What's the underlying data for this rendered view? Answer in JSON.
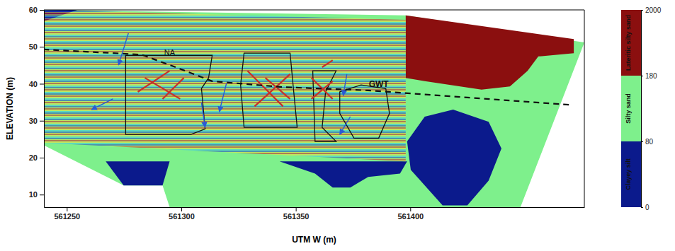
{
  "chart_data": {
    "type": "section",
    "x_label": "UTM W (m)",
    "y_label": "ELEVATION (m)",
    "xlim": [
      561240,
      561476
    ],
    "ylim": [
      6.6,
      60
    ],
    "xticks": [
      561250,
      561300,
      561350,
      561400
    ],
    "yticks": [
      10,
      20,
      30,
      40,
      50,
      60
    ],
    "colorbar": {
      "ticks": [
        0,
        80,
        180,
        2000
      ],
      "classes": [
        "Clayey silt",
        "Silty sand",
        "Lateritic silty sand"
      ],
      "colors": [
        "#0b1a8c",
        "#7ef08c",
        "#8b0f0f"
      ]
    },
    "regions": [
      {
        "class": 1,
        "x": [
          561239.8,
          561398.0,
          561476.0,
          561448.1,
          561294.9,
          561291.8,
          561274.8,
          561239.8
        ],
        "y": [
          60,
          58.5,
          51.2,
          6.6,
          6.6,
          12.5,
          12.5,
          23.4
        ]
      },
      {
        "class": 0,
        "x": [
          561239.8,
          561254.6,
          561239.8
        ],
        "y": [
          60,
          60,
          56.9
        ]
      },
      {
        "class": 0,
        "x": [
          561267.0,
          561294.9,
          561291.8,
          561274.8
        ],
        "y": [
          19.0,
          19.0,
          12.5,
          12.5
        ]
      },
      {
        "class": 0,
        "x": [
          561342.9,
          561398.6,
          561395.5,
          561381.6,
          561373.8,
          561366.1,
          561358.4
        ],
        "y": [
          19.0,
          19.0,
          15.7,
          14.8,
          11.9,
          11.9,
          15.7
        ]
      },
      {
        "class": 0,
        "x": [
          561398.6,
          561406.3,
          561418.7,
          561434.2,
          561439.8,
          561434.2,
          561424.9,
          561414.1,
          561406.3,
          561400.2
        ],
        "y": [
          24.4,
          31.1,
          33.0,
          29.7,
          22.5,
          13.8,
          7.1,
          7.1,
          12.5,
          16.7
        ]
      },
      {
        "class": 2,
        "x": [
          561398.0,
          561471.4,
          561471.4,
          561455.9,
          561451.2,
          561443.5,
          561431.1,
          561406.3,
          561398.0
        ],
        "y": [
          58.5,
          52.1,
          48.3,
          47.4,
          43.5,
          39.3,
          38.4,
          40.7,
          41.6
        ]
      }
    ],
    "radargram": {
      "x": [
        561239.8,
        561398.0,
        561398.0,
        561239.8
      ],
      "y": [
        60,
        57.3,
        19.0,
        24.0
      ]
    },
    "water_table": {
      "x": [
        561239.8,
        561282.5,
        561294.9,
        561313.5,
        561344.4,
        561381.6,
        561469.8
      ],
      "y": [
        49.3,
        47.9,
        45.1,
        40.7,
        39.1,
        38.2,
        34.3
      ],
      "line_style": "dashed"
    },
    "anomalies": [
      {
        "x": [
          561275.7,
          561313.5,
          561311.9,
          561308.8,
          561310.4,
          561304.2,
          561275.7
        ],
        "y": [
          47.7,
          47.7,
          41.6,
          38.7,
          27.8,
          26.3,
          26.3
        ]
      },
      {
        "x": [
          561327.4,
          561347.5,
          561349.1,
          561350.6,
          561327.4,
          561325.9
        ],
        "y": [
          48.3,
          48.3,
          37.8,
          28.2,
          28.2,
          39.7
        ]
      },
      {
        "x": [
          561357.4,
          561367.6,
          561363.0,
          561361.5,
          561367.6,
          561358.4
        ],
        "y": [
          43.5,
          43.5,
          37.8,
          28.2,
          24.4,
          24.4
        ]
      },
      {
        "x": [
          561369.2,
          561378.5,
          561389.3,
          561390.9,
          561386.2,
          561375.4,
          561369.2
        ],
        "y": [
          37.8,
          39.7,
          38.7,
          32.0,
          25.3,
          25.3,
          32.0
        ]
      }
    ],
    "reflectors": [
      {
        "x": [
          561281.0,
          561294.9
        ],
        "y": [
          37.8,
          43.5
        ]
      },
      {
        "x": [
          561284.1,
          561299.5
        ],
        "y": [
          41.6,
          35.9
        ]
      },
      {
        "x": [
          561291.8,
          561301.1
        ],
        "y": [
          35.9,
          41.6
        ]
      },
      {
        "x": [
          561328.9,
          561344.4
        ],
        "y": [
          43.5,
          33.9
        ]
      },
      {
        "x": [
          561332.0,
          561347.5
        ],
        "y": [
          33.9,
          42.6
        ]
      },
      {
        "x": [
          561336.7,
          561347.5
        ],
        "y": [
          41.6,
          35.9
        ]
      },
      {
        "x": [
          561356.8,
          561366.1
        ],
        "y": [
          41.6,
          35.9
        ]
      },
      {
        "x": [
          561356.8,
          561366.1
        ],
        "y": [
          35.9,
          40.7
        ]
      },
      {
        "x": [
          561361.5,
          561366.1
        ],
        "y": [
          44.5,
          46.4
        ]
      }
    ],
    "arrows": [
      {
        "x": [
          561276.9,
          561272.6
        ],
        "y": [
          53.7,
          45.1
        ]
      },
      {
        "x": [
          561270.1,
          561260.8
        ],
        "y": [
          35.9,
          33.0
        ]
      },
      {
        "x": [
          561319.7,
          561316.6
        ],
        "y": [
          40.1,
          32.4
        ]
      },
      {
        "x": [
          561308.8,
          561310.4
        ],
        "y": [
          34.9,
          28.2
        ]
      },
      {
        "x": [
          561372.3,
          561370.7
        ],
        "y": [
          42.6,
          36.8
        ]
      },
      {
        "x": [
          561373.8,
          561369.2
        ],
        "y": [
          31.1,
          26.3
        ]
      }
    ],
    "annotations": [
      {
        "text": "NA",
        "x": 561294.9,
        "y": 48.3
      },
      {
        "text": "GWT",
        "x": 561386.2,
        "y": 39.7
      }
    ]
  }
}
